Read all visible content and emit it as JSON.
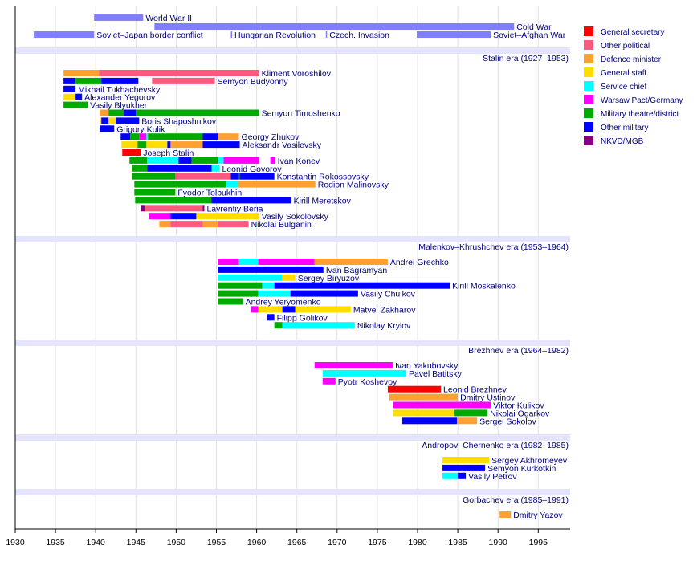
{
  "chart_data": {
    "type": "timeline",
    "xlim": [
      1930,
      1999
    ],
    "x_ticks": [
      1930,
      1935,
      1940,
      1945,
      1950,
      1955,
      1960,
      1965,
      1970,
      1975,
      1980,
      1985,
      1990,
      1995
    ],
    "grid": true,
    "legend_placement": "right",
    "categories": [
      {
        "key": "gs",
        "label": "General secretary",
        "color": "#ff0000"
      },
      {
        "key": "op",
        "label": "Other political",
        "color": "#f95a80"
      },
      {
        "key": "dm",
        "label": "Defence minister",
        "color": "#ffa030"
      },
      {
        "key": "gst",
        "label": "General staff",
        "color": "#ffdd00"
      },
      {
        "key": "sc",
        "label": "Service chief",
        "color": "#00ffff"
      },
      {
        "key": "wp",
        "label": "Warsaw Pact/Germany",
        "color": "#ff00ff"
      },
      {
        "key": "mt",
        "label": "Military theatre/district",
        "color": "#00aa00"
      },
      {
        "key": "om",
        "label": "Other military",
        "color": "#0000ff"
      },
      {
        "key": "nk",
        "label": "NKVD/MGB",
        "color": "#800080"
      }
    ],
    "event_color": "#8080ff",
    "era_band_color": "#e4e4ff",
    "events": [
      {
        "label": "World War II",
        "start": 1939.8,
        "end": 1945.9,
        "row": 0
      },
      {
        "label": "Cold War",
        "start": 1947.3,
        "end": 1992.0,
        "row": 1
      },
      {
        "label": "Soviet–Japan border conflict",
        "start": 1932.3,
        "end": 1939.8,
        "row": 2
      },
      {
        "label": "Hungarian Revolution",
        "start": 1956.8,
        "end": 1956.9,
        "row": 2
      },
      {
        "label": "Czech. Invasion",
        "start": 1968.6,
        "end": 1968.7,
        "row": 2
      },
      {
        "label": "Soviet–Afghan War",
        "start": 1979.9,
        "end": 1989.1,
        "row": 2
      }
    ],
    "eras": [
      {
        "label": "Stalin era (1927–1953)",
        "people": [
          {
            "name": "Kliment Voroshilov",
            "segments": [
              [
                1936,
                1940.4,
                "dm"
              ],
              [
                1940.4,
                1960.3,
                "op"
              ]
            ]
          },
          {
            "name": "Semyon Budyonny",
            "segments": [
              [
                1936,
                1937.5,
                "om"
              ],
              [
                1937.5,
                1940.7,
                "mt"
              ],
              [
                1940.7,
                1945.3,
                "om"
              ],
              [
                1947,
                1954.8,
                "op"
              ]
            ]
          },
          {
            "name": "Mikhail Tukhachevsky",
            "segments": [
              [
                1936,
                1937.5,
                "om"
              ]
            ]
          },
          {
            "name": "Alexander Yegorov",
            "segments": [
              [
                1936,
                1937.5,
                "gst"
              ],
              [
                1937.5,
                1938.3,
                "om"
              ]
            ]
          },
          {
            "name": "Vasily Blyukher",
            "segments": [
              [
                1936,
                1939,
                "mt"
              ]
            ]
          },
          {
            "name": "Semyon Timoshenko",
            "segments": [
              [
                1940.5,
                1941.6,
                "dm"
              ],
              [
                1941.6,
                1943.5,
                "mt"
              ],
              [
                1943.5,
                1945,
                "om"
              ],
              [
                1945,
                1960.3,
                "mt"
              ]
            ]
          },
          {
            "name": "Boris Shaposhnikov",
            "segments": [
              [
                1940.5,
                1940.7,
                "gst"
              ],
              [
                1940.7,
                1941.6,
                "om"
              ],
              [
                1941.6,
                1942.5,
                "gst"
              ],
              [
                1942.5,
                1945.4,
                "om"
              ]
            ]
          },
          {
            "name": "Grigory Kulik",
            "segments": [
              [
                1940.5,
                1942.3,
                "om"
              ]
            ]
          },
          {
            "name": "Georgy Zhukov",
            "segments": [
              [
                1943.1,
                1944.3,
                "om"
              ],
              [
                1944.3,
                1945.4,
                "mt"
              ],
              [
                1945.4,
                1946.3,
                "wp"
              ],
              [
                1946.3,
                1946.5,
                "sc"
              ],
              [
                1946.5,
                1953.3,
                "mt"
              ],
              [
                1953.3,
                1955.2,
                "om"
              ],
              [
                1955.2,
                1957.8,
                "dm"
              ]
            ]
          },
          {
            "name": "Aleksandr Vasilevsky",
            "segments": [
              [
                1943.2,
                1945.2,
                "gst"
              ],
              [
                1945.2,
                1946.3,
                "mt"
              ],
              [
                1946.3,
                1948.9,
                "gst"
              ],
              [
                1948.9,
                1949.3,
                "om"
              ],
              [
                1949.3,
                1953.3,
                "dm"
              ],
              [
                1953.3,
                1957.9,
                "om"
              ]
            ]
          },
          {
            "name": "Joseph Stalin",
            "segments": [
              [
                1943.3,
                1945.6,
                "gs"
              ]
            ]
          },
          {
            "name": "Ivan Konev",
            "segments": [
              [
                1944.2,
                1946.4,
                "mt"
              ],
              [
                1946.4,
                1950.3,
                "sc"
              ],
              [
                1950.3,
                1951.9,
                "om"
              ],
              [
                1951.9,
                1955.2,
                "mt"
              ],
              [
                1955.2,
                1955.9,
                "sc"
              ],
              [
                1955.9,
                1960.3,
                "wp"
              ],
              [
                1961.7,
                1962.3,
                "wp"
              ]
            ]
          },
          {
            "name": "Leonid Govorov",
            "segments": [
              [
                1944.5,
                1946.4,
                "mt"
              ],
              [
                1946.4,
                1954.4,
                "om"
              ],
              [
                1954.4,
                1955.4,
                "sc"
              ]
            ]
          },
          {
            "name": "Konstantin Rokossovsky",
            "segments": [
              [
                1944.5,
                1949.9,
                "mt"
              ],
              [
                1949.9,
                1956.8,
                "op"
              ],
              [
                1956.8,
                1957.8,
                "om"
              ],
              [
                1957.8,
                1957.9,
                "mt"
              ],
              [
                1957.9,
                1962.2,
                "om"
              ]
            ]
          },
          {
            "name": "Rodion Malinovsky",
            "segments": [
              [
                1944.8,
                1956.2,
                "mt"
              ],
              [
                1956.2,
                1957.7,
                "sc"
              ],
              [
                1957.7,
                1967.3,
                "dm"
              ]
            ]
          },
          {
            "name": "Fyodor Tolbukhin",
            "segments": [
              [
                1944.8,
                1949.9,
                "mt"
              ]
            ]
          },
          {
            "name": "Kirill Meretskov",
            "segments": [
              [
                1944.9,
                1954.4,
                "mt"
              ],
              [
                1954.4,
                1964.3,
                "om"
              ]
            ]
          },
          {
            "name": "Lavrentiy Beria",
            "segments": [
              [
                1945.6,
                1946.1,
                "nk"
              ],
              [
                1946.1,
                1953.3,
                "op"
              ],
              [
                1953.3,
                1953.5,
                "nk"
              ]
            ]
          },
          {
            "name": "Vasily Sokolovsky",
            "segments": [
              [
                1946.6,
                1949.3,
                "wp"
              ],
              [
                1949.3,
                1952.5,
                "om"
              ],
              [
                1952.5,
                1960.3,
                "gst"
              ]
            ]
          },
          {
            "name": "Nikolai Bulganin",
            "segments": [
              [
                1947.9,
                1949.3,
                "dm"
              ],
              [
                1949.3,
                1953.3,
                "op"
              ],
              [
                1953.3,
                1955.2,
                "dm"
              ],
              [
                1955.2,
                1959,
                "op"
              ]
            ]
          }
        ]
      },
      {
        "label": "Malenkov–Khrushchev era (1953–1964)",
        "people": [
          {
            "name": "Andrei Grechko",
            "segments": [
              [
                1955.2,
                1957.8,
                "wp"
              ],
              [
                1957.8,
                1960.2,
                "sc"
              ],
              [
                1960.2,
                1967.2,
                "wp"
              ],
              [
                1967.2,
                1976.3,
                "dm"
              ]
            ]
          },
          {
            "name": "Ivan Bagramyan",
            "segments": [
              [
                1955.2,
                1968.3,
                "om"
              ]
            ]
          },
          {
            "name": "Sergey Biryuzov",
            "segments": [
              [
                1955.2,
                1963.2,
                "sc"
              ],
              [
                1963.2,
                1964.8,
                "gst"
              ]
            ]
          },
          {
            "name": "Kirill Moskalenko",
            "segments": [
              [
                1955.2,
                1960.7,
                "mt"
              ],
              [
                1960.7,
                1962.2,
                "sc"
              ],
              [
                1962.2,
                1984,
                "om"
              ]
            ]
          },
          {
            "name": "Vasily Chuikov",
            "segments": [
              [
                1955.2,
                1960.2,
                "mt"
              ],
              [
                1960.2,
                1964.2,
                "sc"
              ],
              [
                1964.2,
                1972.6,
                "om"
              ]
            ]
          },
          {
            "name": "Andrey Yeryomenko",
            "segments": [
              [
                1955.2,
                1958.3,
                "mt"
              ]
            ]
          },
          {
            "name": "Matvei Zakharov",
            "segments": [
              [
                1959.3,
                1960.2,
                "wp"
              ],
              [
                1960.2,
                1963.2,
                "gst"
              ],
              [
                1963.2,
                1964.8,
                "om"
              ],
              [
                1964.8,
                1971.7,
                "gst"
              ]
            ]
          },
          {
            "name": "Filipp Golikov",
            "segments": [
              [
                1961.3,
                1962.2,
                "om"
              ]
            ]
          },
          {
            "name": "Nikolay Krylov",
            "segments": [
              [
                1962.2,
                1963.2,
                "mt"
              ],
              [
                1963.2,
                1972.2,
                "sc"
              ]
            ]
          }
        ]
      },
      {
        "label": "Brezhnev era (1964–1982)",
        "people": [
          {
            "name": "Ivan Yakubovsky",
            "segments": [
              [
                1967.2,
                1976.9,
                "wp"
              ]
            ]
          },
          {
            "name": "Pavel Batitsky",
            "segments": [
              [
                1968.2,
                1978.6,
                "sc"
              ]
            ]
          },
          {
            "name": "Pyotr Koshevoy",
            "segments": [
              [
                1968.2,
                1969.8,
                "wp"
              ]
            ]
          },
          {
            "name": "Leonid Brezhnev",
            "segments": [
              [
                1976.3,
                1982.9,
                "gs"
              ]
            ]
          },
          {
            "name": "Dmitry Ustinov",
            "segments": [
              [
                1976.5,
                1985,
                "dm"
              ]
            ]
          },
          {
            "name": "Viktor Kulikov",
            "segments": [
              [
                1977,
                1989.1,
                "wp"
              ]
            ]
          },
          {
            "name": "Nikolai Ogarkov",
            "segments": [
              [
                1977,
                1984.6,
                "gst"
              ],
              [
                1984.6,
                1988.7,
                "mt"
              ]
            ]
          },
          {
            "name": "Sergei Sokolov",
            "segments": [
              [
                1978.1,
                1984.9,
                "om"
              ],
              [
                1984.9,
                1987.4,
                "dm"
              ]
            ]
          }
        ]
      },
      {
        "label": "Andropov–Chernenko era (1982–1985)",
        "people": [
          {
            "name": "Sergey Akhromeyev",
            "segments": [
              [
                1983.1,
                1988.9,
                "gst"
              ]
            ]
          },
          {
            "name": "Semyon Kurkotkin",
            "segments": [
              [
                1983.1,
                1988.4,
                "om"
              ]
            ]
          },
          {
            "name": "Vasily Petrov",
            "segments": [
              [
                1983.1,
                1985,
                "sc"
              ],
              [
                1985,
                1986,
                "om"
              ]
            ]
          }
        ]
      },
      {
        "label": "Gorbachev era (1985–1991)",
        "people": [
          {
            "name": "Dmitry Yazov",
            "segments": [
              [
                1990.2,
                1991.6,
                "dm"
              ]
            ]
          }
        ]
      }
    ]
  }
}
